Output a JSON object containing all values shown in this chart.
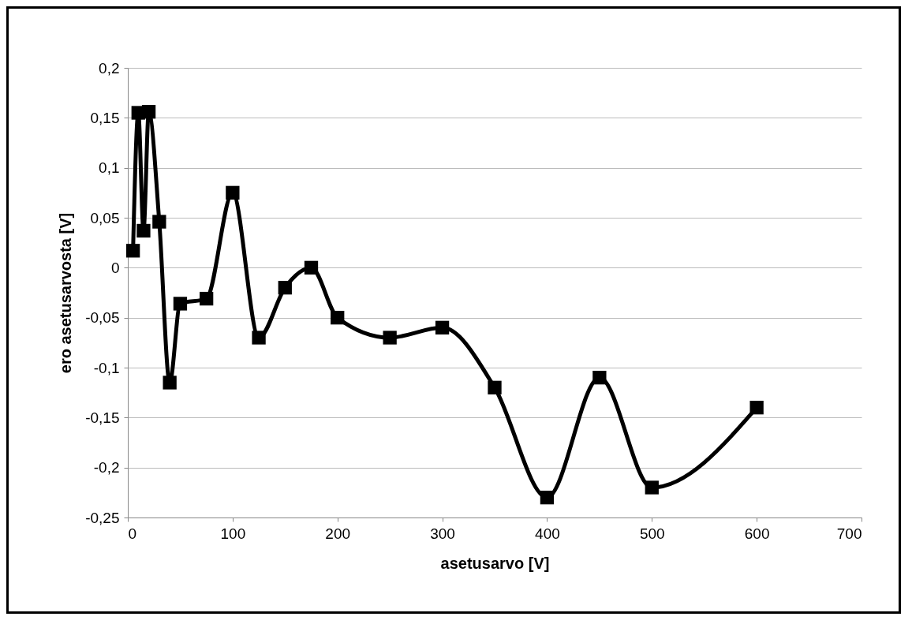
{
  "chart_data": {
    "type": "line",
    "xlabel": "asetusarvo [V]",
    "ylabel": "ero asetusarvosta [V]",
    "x": [
      5,
      10,
      15,
      20,
      30,
      40,
      50,
      75,
      100,
      125,
      150,
      175,
      200,
      250,
      300,
      350,
      400,
      450,
      500,
      600
    ],
    "series": [
      {
        "color": "#000000",
        "values": [
          0.017,
          0.155,
          0.037,
          0.156,
          0.046,
          -0.115,
          -0.036,
          -0.031,
          0.075,
          -0.07,
          -0.02,
          0,
          -0.05,
          -0.07,
          -0.06,
          -0.12,
          -0.23,
          -0.11,
          -0.22,
          -0.14
        ]
      }
    ],
    "xlim": [
      0,
      700
    ],
    "xticks": [
      0,
      100,
      200,
      300,
      400,
      500,
      600,
      700
    ],
    "ylim": [
      -0.25,
      0.2
    ],
    "yticks": [
      {
        "value": -0.25,
        "label": "-0,25"
      },
      {
        "value": -0.2,
        "label": "-0,2"
      },
      {
        "value": -0.15,
        "label": "-0,15"
      },
      {
        "value": -0.1,
        "label": "-0,1"
      },
      {
        "value": -0.05,
        "label": "-0,05"
      },
      0,
      {
        "value": 0.05,
        "label": "0,05"
      },
      {
        "value": 0.1,
        "label": "0,1"
      },
      {
        "value": 0.15,
        "label": "0,15"
      },
      {
        "value": 0.2,
        "label": "0,2"
      }
    ],
    "grid": "y",
    "marker": "square",
    "line_style": "solid"
  }
}
